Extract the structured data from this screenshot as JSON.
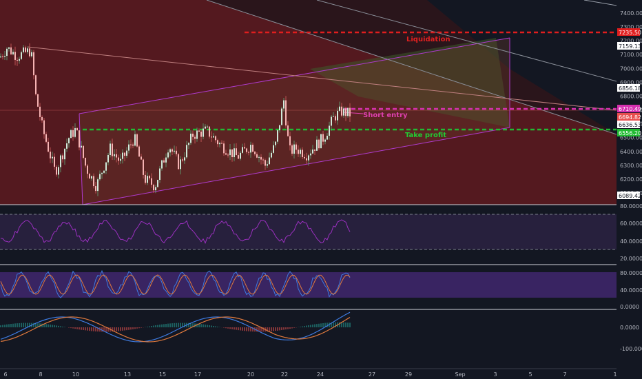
{
  "price_panel": {
    "axis_labels": [
      "7400.00",
      "7300.00",
      "7200.00",
      "7100.00",
      "7000.00",
      "6900.00",
      "6800.00",
      "6700.00",
      "6600.00",
      "6500.00",
      "6400.00",
      "6300.00",
      "6200.00",
      "6100.00"
    ],
    "price_tags": [
      {
        "text": "7235.50",
        "color": "#e01e1e",
        "bg": "#e01e1e",
        "fg": "#ffffff"
      },
      {
        "text": "7159.13",
        "color": "#9aa0ab",
        "bg": "#ffffff",
        "fg": "#131722"
      },
      {
        "text": "6856.18",
        "color": "#9aa0ab",
        "bg": "#ffffff",
        "fg": "#131722"
      },
      {
        "text": "6710.49",
        "color": "#d630b0",
        "bg": "#d630b0",
        "fg": "#ffffff"
      },
      {
        "text": "6694.82",
        "color": "#e84e4e",
        "bg": "#e84e4e",
        "fg": "#ffffff"
      },
      {
        "text": "6636.53",
        "color": "#ffffff",
        "bg": "#ffffff",
        "fg": "#131722"
      },
      {
        "text": "6556.20",
        "color": "#22bb33",
        "bg": "#22bb33",
        "fg": "#ffffff"
      },
      {
        "text": "6089.42",
        "color": "#9aa0ab",
        "bg": "#ffffff",
        "fg": "#131722"
      }
    ],
    "annotations": {
      "liquidation": "Liquidation",
      "short_entry": "Short entry",
      "take_profit": "Take profit"
    },
    "levels": {
      "liquidation": 7235.5,
      "short_entry": 6710.49,
      "take_profit": 6556.2
    }
  },
  "rsi_panel": {
    "axis_labels": [
      "80.0000",
      "60.0000",
      "40.0000",
      "20.0000"
    ]
  },
  "stoch_panel": {
    "axis_labels": [
      "80.0000",
      "40.0000",
      "0.0000"
    ]
  },
  "macd_panel": {
    "axis_labels": [
      "0.0000",
      "-100.0000"
    ]
  },
  "time_axis": [
    "6",
    "8",
    "10",
    "13",
    "15",
    "17",
    "20",
    "22",
    "24",
    "27",
    "29",
    "Sep",
    "3",
    "5",
    "7",
    "1"
  ],
  "colors": {
    "bg": "#131722",
    "up": "#26a69a",
    "down": "#ef5350",
    "rsi": "#8e24aa",
    "band": "#4a2a7a"
  }
}
